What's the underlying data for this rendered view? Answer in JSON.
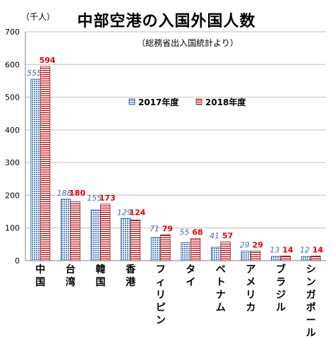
{
  "chart_data": {
    "type": "bar",
    "title": "中部空港の入国外国人数",
    "subtitle": "（総務省出入国統計より）",
    "unit_label": "（千人）",
    "categories": [
      "中国",
      "台湾",
      "韓国",
      "香港",
      "フィリピン",
      "タイ",
      "ベトナム",
      "アメリカ",
      "ブラジル",
      "シンガポール"
    ],
    "series": [
      {
        "name": "2017年度",
        "values": [
          555,
          188,
          155,
          129,
          71,
          55,
          41,
          29,
          13,
          12
        ]
      },
      {
        "name": "2018年度",
        "values": [
          594,
          180,
          173,
          124,
          79,
          68,
          57,
          29,
          14,
          14
        ]
      }
    ],
    "ylim": [
      0,
      700
    ],
    "yticks": [
      "0",
      "100",
      "200",
      "300",
      "400",
      "500",
      "600",
      "700"
    ],
    "ytick_values": [
      0,
      100,
      200,
      300,
      400,
      500,
      600,
      700
    ],
    "grid": true,
    "legend": "center",
    "colors": {
      "s2017_fill": "#4f81bd",
      "s2017_border": "#2f5597",
      "s2017_label": "#4a6ea0",
      "s2018_stripe": "#c00000",
      "s2018_border": "#7f1f1f",
      "s2018_label": "#e00000",
      "grid": "#bfbfbf"
    }
  }
}
